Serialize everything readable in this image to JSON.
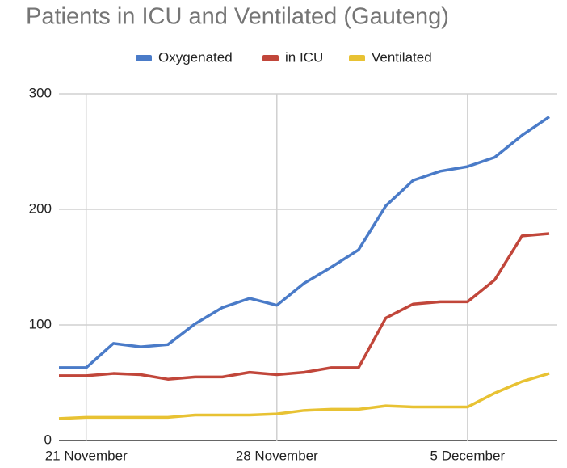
{
  "chart_data": {
    "type": "line",
    "title": "Patients in ICU and Ventilated (Gauteng)",
    "categories": [
      null,
      "21 November",
      null,
      null,
      null,
      null,
      null,
      null,
      "28 November",
      null,
      null,
      null,
      null,
      null,
      null,
      "5 December",
      null,
      null,
      null
    ],
    "series": [
      {
        "name": "Oxygenated",
        "color": "#4a7bc8",
        "values": [
          63,
          63,
          84,
          81,
          83,
          101,
          115,
          123,
          117,
          136,
          150,
          165,
          203,
          225,
          233,
          237,
          245,
          264,
          280
        ]
      },
      {
        "name": "in ICU",
        "color": "#c1463a",
        "values": [
          56,
          56,
          58,
          57,
          53,
          55,
          55,
          59,
          57,
          59,
          63,
          63,
          106,
          118,
          120,
          120,
          139,
          177,
          179
        ]
      },
      {
        "name": "Ventilated",
        "color": "#e8c233",
        "values": [
          19,
          20,
          20,
          20,
          20,
          22,
          22,
          22,
          23,
          26,
          27,
          27,
          30,
          29,
          29,
          29,
          41,
          51,
          58
        ]
      }
    ],
    "ylim": [
      0,
      300
    ],
    "yticks": [
      0,
      100,
      200,
      300
    ],
    "grid": true,
    "legend": "top"
  }
}
